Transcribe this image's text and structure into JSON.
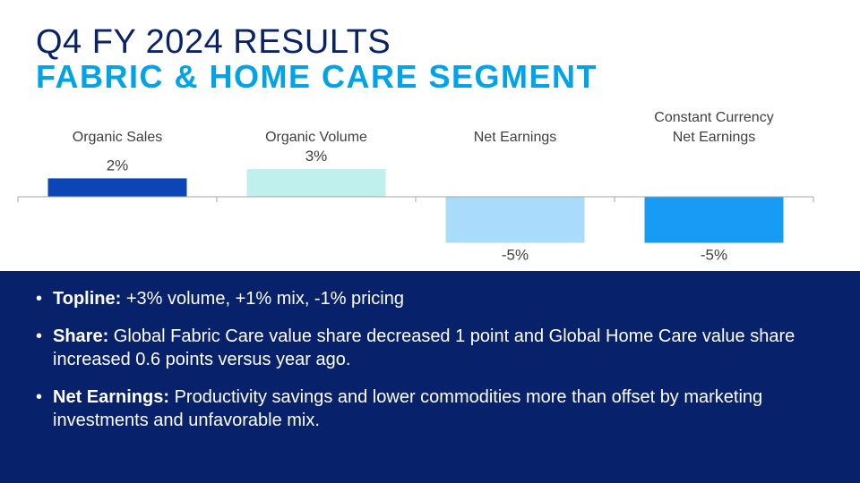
{
  "slide": {
    "title": "Q4 FY 2024 RESULTS",
    "subtitle": "FABRIC & HOME CARE SEGMENT"
  },
  "chart_data": {
    "type": "bar",
    "categories": [
      "Organic Sales",
      "Organic Volume",
      "Net Earnings",
      "Constant Currency Net Earnings"
    ],
    "category_lines": [
      [
        "Organic Sales"
      ],
      [
        "Organic Volume"
      ],
      [
        "Net Earnings"
      ],
      [
        "Constant Currency",
        "Net Earnings"
      ]
    ],
    "values": [
      2,
      3,
      -5,
      -5
    ],
    "value_labels": [
      "2%",
      "3%",
      "-5%",
      "-5%"
    ],
    "ylim": [
      -6,
      4
    ],
    "bar_colors": [
      "#0b45b8",
      "#bff0ee",
      "#a9dcfb",
      "#169cf5"
    ],
    "grid": false
  },
  "bullets": [
    {
      "label": "Topline:",
      "text": " +3% volume, +1% mix, -1% pricing"
    },
    {
      "label": "Share:",
      "text": " Global Fabric Care value share decreased 1 point and Global Home Care value share increased 0.6 points versus year ago."
    },
    {
      "label": "Net Earnings:",
      "text": " Productivity savings and lower commodities more than offset by marketing investments and unfavorable mix."
    }
  ],
  "colors": {
    "title": "#0a2266",
    "subtitle": "#00a3e8",
    "panel": "#08216b"
  }
}
